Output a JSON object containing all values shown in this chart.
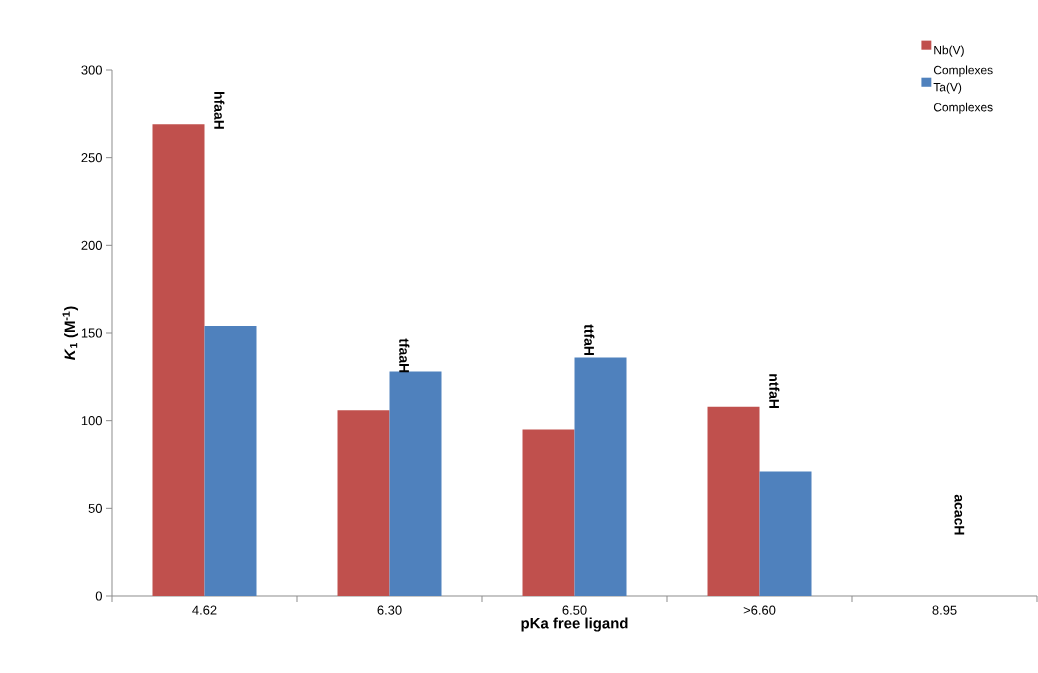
{
  "chart_data": {
    "type": "bar",
    "xlabel": "pKa free ligand",
    "ylabel": "*K*$_{1}$ (M$^{-1}$)",
    "categories": [
      "4.62",
      "6.30",
      "6.50",
      ">6.60",
      "8.95"
    ],
    "series": [
      {
        "name": "Nb(V) Complexes",
        "color": "#c0504d",
        "values": [
          269,
          106,
          95,
          108,
          null
        ]
      },
      {
        "name": "Ta(V) Complexes",
        "color": "#4f81bd",
        "values": [
          154,
          128,
          136,
          71,
          null
        ]
      }
    ],
    "ylim": [
      0,
      300
    ],
    "yticks": [
      0,
      50,
      100,
      150,
      200,
      250,
      300
    ],
    "annotations": [
      "hfaaH",
      "tfaaH",
      "ttfaH",
      "ntfaH",
      "acacH"
    ],
    "legend": "top right",
    "grid": false
  }
}
